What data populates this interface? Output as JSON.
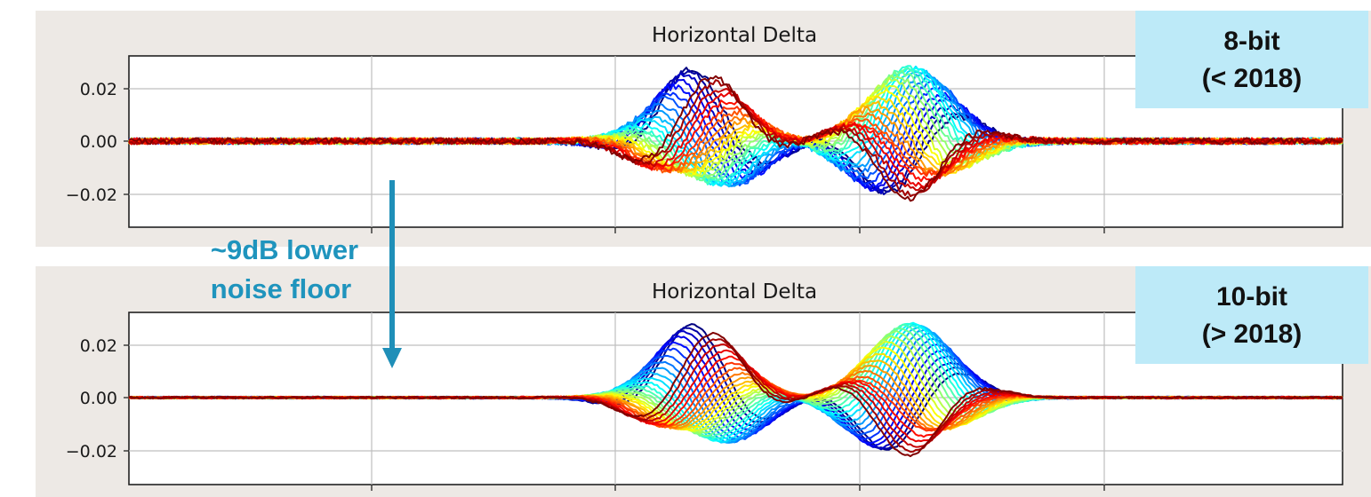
{
  "chart_data": [
    {
      "type": "line",
      "title": "Horizontal Delta",
      "xlabel": "",
      "ylabel": "",
      "ylim": [
        -0.033,
        0.033
      ],
      "yticks": [
        0.02,
        0.0,
        -0.02
      ],
      "ytick_labels": [
        "0.02",
        "0.00",
        "−0.02"
      ],
      "grid": true,
      "num_series": 30,
      "pulse_peak": 0.029,
      "noise_floor_amplitude": 0.0012,
      "badge": [
        "8-bit",
        "(< 2018)"
      ]
    },
    {
      "type": "line",
      "title": "Horizontal Delta",
      "xlabel": "",
      "ylabel": "",
      "ylim": [
        -0.033,
        0.033
      ],
      "yticks": [
        0.02,
        0.0,
        -0.02
      ],
      "ytick_labels": [
        "0.02",
        "0.00",
        "−0.02"
      ],
      "grid": true,
      "num_series": 30,
      "pulse_peak": 0.029,
      "noise_floor_amplitude": 0.0004,
      "badge": [
        "10-bit",
        "(> 2018)"
      ]
    }
  ],
  "annotation": {
    "line1": "~9dB lower",
    "line2": "noise floor",
    "color": "#1f94bd"
  },
  "colormap": "jet"
}
